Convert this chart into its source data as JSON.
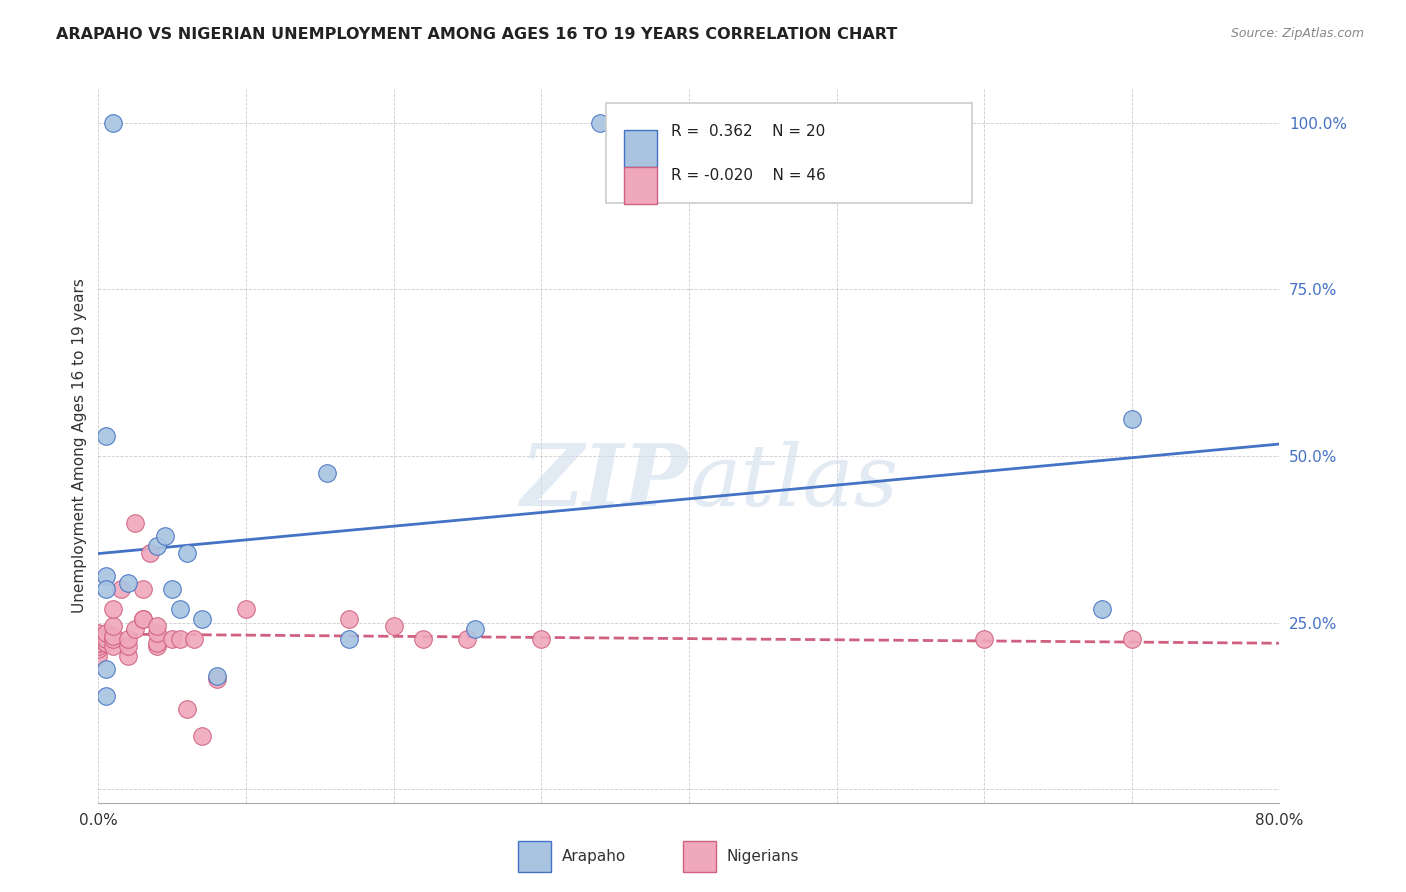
{
  "title": "ARAPAHO VS NIGERIAN UNEMPLOYMENT AMONG AGES 16 TO 19 YEARS CORRELATION CHART",
  "source": "Source: ZipAtlas.com",
  "ylabel": "Unemployment Among Ages 16 to 19 years",
  "xlim": [
    0.0,
    0.8
  ],
  "ylim": [
    -0.02,
    1.05
  ],
  "yticks": [
    0.0,
    0.25,
    0.5,
    0.75,
    1.0
  ],
  "ytick_labels": [
    "",
    "25.0%",
    "50.0%",
    "75.0%",
    "100.0%"
  ],
  "xticks": [
    0.0,
    0.1,
    0.2,
    0.3,
    0.4,
    0.5,
    0.6,
    0.7,
    0.8
  ],
  "xtick_labels": [
    "0.0%",
    "",
    "",
    "",
    "",
    "",
    "",
    "",
    "80.0%"
  ],
  "blue_color": "#a8c4e0",
  "pink_color": "#f0a8bc",
  "blue_line_color": "#4472c4",
  "pink_line_color": "#d06080",
  "watermark": "ZIPatlas",
  "arapaho_x": [
    0.01,
    0.34,
    0.005,
    0.005,
    0.005,
    0.02,
    0.04,
    0.045,
    0.05,
    0.055,
    0.06,
    0.07,
    0.08,
    0.155,
    0.17,
    0.255,
    0.68,
    0.7,
    0.005,
    0.005
  ],
  "arapaho_y": [
    1.0,
    1.0,
    0.53,
    0.32,
    0.3,
    0.31,
    0.365,
    0.38,
    0.3,
    0.27,
    0.355,
    0.255,
    0.17,
    0.475,
    0.225,
    0.24,
    0.27,
    0.555,
    0.18,
    0.14
  ],
  "nigerian_x": [
    0.0,
    0.0,
    0.0,
    0.0,
    0.0,
    0.0,
    0.0,
    0.0,
    0.0,
    0.0,
    0.005,
    0.005,
    0.005,
    0.01,
    0.01,
    0.01,
    0.01,
    0.01,
    0.015,
    0.02,
    0.02,
    0.02,
    0.025,
    0.025,
    0.03,
    0.03,
    0.03,
    0.035,
    0.04,
    0.04,
    0.04,
    0.04,
    0.05,
    0.055,
    0.06,
    0.065,
    0.07,
    0.08,
    0.1,
    0.17,
    0.2,
    0.22,
    0.25,
    0.3,
    0.6,
    0.7
  ],
  "nigerian_y": [
    0.2,
    0.21,
    0.215,
    0.22,
    0.22,
    0.22,
    0.225,
    0.23,
    0.23,
    0.235,
    0.22,
    0.225,
    0.235,
    0.215,
    0.225,
    0.23,
    0.245,
    0.27,
    0.3,
    0.2,
    0.215,
    0.225,
    0.4,
    0.24,
    0.255,
    0.255,
    0.3,
    0.355,
    0.215,
    0.22,
    0.235,
    0.245,
    0.225,
    0.225,
    0.12,
    0.225,
    0.08,
    0.165,
    0.27,
    0.255,
    0.245,
    0.225,
    0.225,
    0.225,
    0.225,
    0.225
  ]
}
